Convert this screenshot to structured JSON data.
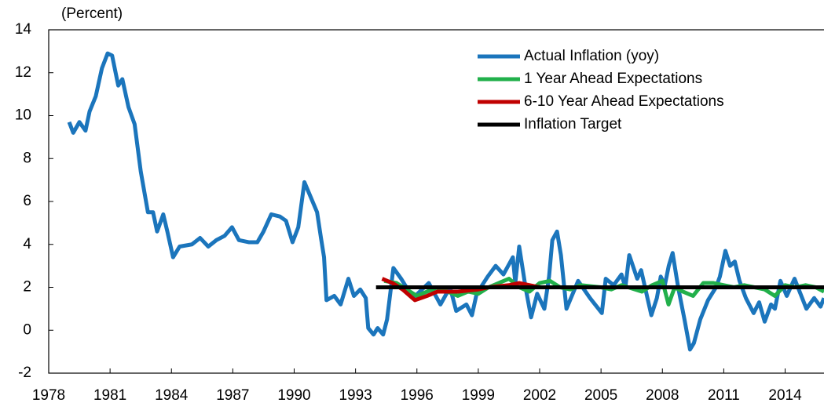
{
  "chart_data": {
    "type": "line",
    "y_axis_label": "(Percent)",
    "xlim": [
      1978,
      2015.9
    ],
    "ylim": [
      -2,
      14
    ],
    "xticks": [
      1978,
      1981,
      1984,
      1987,
      1990,
      1993,
      1996,
      1999,
      2002,
      2005,
      2008,
      2011,
      2014
    ],
    "yticks": [
      -2,
      0,
      2,
      4,
      6,
      8,
      10,
      12,
      14
    ],
    "legend_position": "top",
    "series": [
      {
        "name": "Actual Inflation (yoy)",
        "color": "#1b75bc",
        "x": [
          1979.0,
          1979.2,
          1979.5,
          1979.8,
          1980.0,
          1980.3,
          1980.6,
          1980.88,
          1981.1,
          1981.4,
          1981.6,
          1981.9,
          1982.2,
          1982.5,
          1982.85,
          1983.1,
          1983.3,
          1983.6,
          1983.8,
          1984.08,
          1984.4,
          1985.0,
          1985.4,
          1985.8,
          1986.2,
          1986.6,
          1986.96,
          1987.3,
          1987.8,
          1988.2,
          1988.5,
          1988.88,
          1989.3,
          1989.6,
          1989.92,
          1990.2,
          1990.5,
          1990.81,
          1991.12,
          1991.31,
          1991.46,
          1991.58,
          1991.96,
          1992.27,
          1992.65,
          1992.92,
          1993.23,
          1993.5,
          1993.62,
          1993.88,
          1994.08,
          1994.35,
          1994.54,
          1994.85,
          1995.23,
          1995.81,
          1996.58,
          1997.15,
          1997.62,
          1997.92,
          1998.42,
          1998.69,
          1998.92,
          1999.46,
          1999.85,
          2000.23,
          2000.69,
          2000.81,
          2001.0,
          2001.31,
          2001.58,
          2001.88,
          2002.23,
          2002.46,
          2002.62,
          2002.85,
          2003.04,
          2003.31,
          2003.88,
          2004.46,
          2005.04,
          2005.23,
          2005.62,
          2006.0,
          2006.19,
          2006.38,
          2006.77,
          2006.96,
          2007.46,
          2007.73,
          2007.92,
          2008.12,
          2008.31,
          2008.5,
          2008.77,
          2009.08,
          2009.35,
          2009.54,
          2009.85,
          2010.23,
          2010.62,
          2010.81,
          2011.08,
          2011.31,
          2011.54,
          2011.77,
          2012.08,
          2012.46,
          2012.73,
          2013.0,
          2013.31,
          2013.5,
          2013.77,
          2014.08,
          2014.46,
          2015.04,
          2015.42,
          2015.73,
          2015.9
        ],
        "values": [
          9.7,
          9.2,
          9.7,
          9.3,
          10.2,
          10.9,
          12.2,
          12.9,
          12.8,
          11.4,
          11.7,
          10.4,
          9.6,
          7.4,
          5.5,
          5.5,
          4.6,
          5.4,
          4.6,
          3.4,
          3.9,
          4.0,
          4.3,
          3.9,
          4.2,
          4.4,
          4.8,
          4.2,
          4.1,
          4.1,
          4.6,
          5.4,
          5.3,
          5.1,
          4.1,
          4.8,
          6.9,
          6.2,
          5.5,
          4.3,
          3.4,
          1.4,
          1.6,
          1.2,
          2.4,
          1.6,
          1.9,
          1.5,
          0.1,
          -0.2,
          0.1,
          -0.2,
          0.5,
          2.9,
          2.4,
          1.5,
          2.2,
          1.2,
          2.0,
          0.9,
          1.2,
          0.7,
          1.7,
          2.5,
          3.0,
          2.6,
          3.4,
          2.2,
          3.9,
          2.0,
          0.6,
          1.7,
          1.0,
          2.5,
          4.2,
          4.6,
          3.5,
          1.0,
          2.3,
          1.5,
          0.8,
          2.4,
          2.1,
          2.6,
          2.0,
          3.5,
          2.4,
          2.8,
          0.7,
          1.5,
          2.5,
          2.1,
          3.0,
          3.6,
          2.0,
          0.5,
          -0.9,
          -0.6,
          0.5,
          1.4,
          2.0,
          2.5,
          3.7,
          3.0,
          3.2,
          2.3,
          1.5,
          0.8,
          1.3,
          0.4,
          1.2,
          1.0,
          2.3,
          1.6,
          2.4,
          1.0,
          1.5,
          1.1,
          1.5
        ]
      },
      {
        "name": "1 Year Ahead Expectations",
        "color": "#22b04b",
        "x": [
          1994.4,
          1995.0,
          1995.5,
          1996.0,
          1996.5,
          1997.0,
          1997.5,
          1998.0,
          1998.5,
          1999.0,
          1999.5,
          2000.0,
          2000.5,
          2001.0,
          2001.5,
          2002.0,
          2002.5,
          2003.0,
          2003.5,
          2004.0,
          2005.0,
          2005.5,
          2006.0,
          2007.0,
          2007.5,
          2008.0,
          2008.3,
          2008.6,
          2009.0,
          2009.5,
          2010.0,
          2010.5,
          2011.0,
          2011.5,
          2012.0,
          2012.5,
          2013.0,
          2013.5,
          2014.0,
          2014.5,
          2015.0,
          2015.5,
          2015.9
        ],
        "values": [
          2.3,
          2.2,
          1.9,
          1.6,
          1.8,
          2.0,
          1.8,
          1.6,
          1.8,
          1.7,
          2.0,
          2.2,
          2.4,
          2.0,
          1.8,
          2.2,
          2.3,
          2.0,
          1.9,
          2.1,
          2.0,
          1.9,
          2.1,
          1.8,
          2.1,
          2.3,
          1.2,
          2.0,
          1.8,
          1.6,
          2.2,
          2.2,
          2.1,
          2.0,
          2.1,
          2.0,
          1.9,
          1.6,
          2.1,
          2.0,
          2.1,
          2.0,
          1.8
        ]
      },
      {
        "name": "6-10 Year Ahead Expectations",
        "color": "#c00000",
        "x": [
          1994.3,
          1994.8,
          1995.3,
          1995.9,
          1996.5,
          1997.0,
          1998.0,
          1999.0,
          1999.5,
          2000.5,
          2001.0,
          2002.0,
          2004.0,
          2006.0,
          2008.0,
          2010.0,
          2012.0,
          2014.0,
          2015.9
        ],
        "values": [
          2.4,
          2.2,
          1.9,
          1.4,
          1.6,
          1.8,
          1.8,
          1.9,
          2.0,
          2.1,
          2.2,
          2.0,
          2.0,
          2.0,
          2.0,
          2.0,
          2.0,
          2.0,
          2.0
        ]
      },
      {
        "name": "Inflation Target",
        "color": "#000000",
        "x": [
          1994.0,
          2015.9
        ],
        "values": [
          2,
          2
        ]
      }
    ]
  }
}
